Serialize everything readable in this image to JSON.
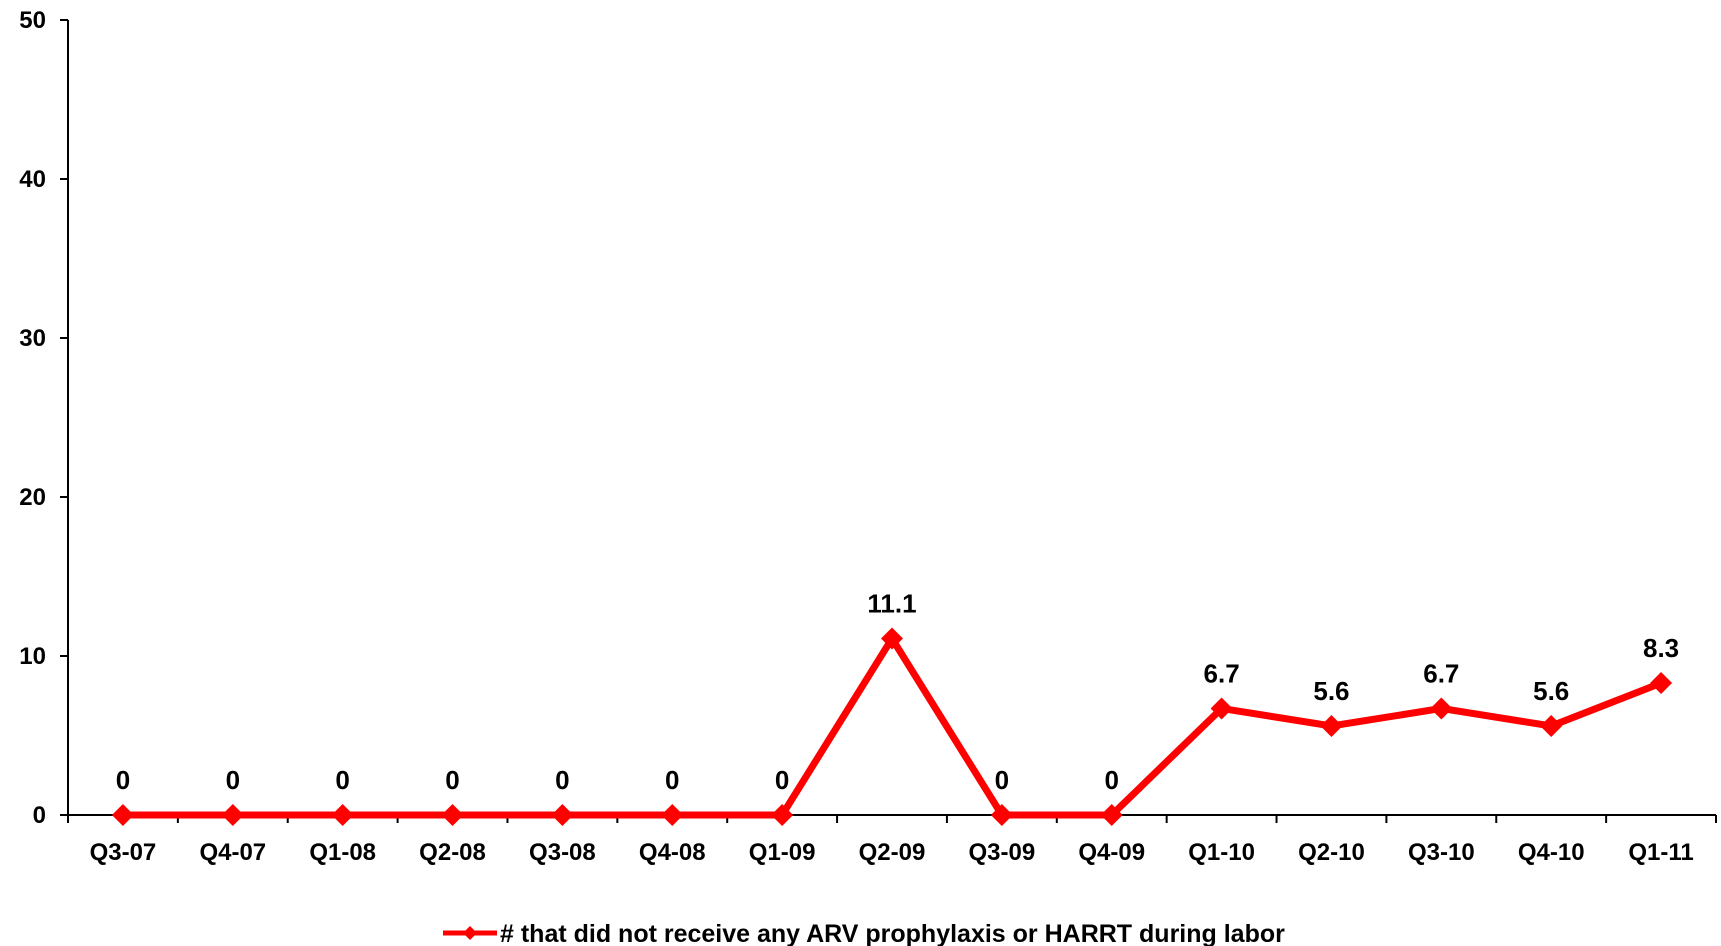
{
  "chart_data": {
    "type": "line",
    "categories": [
      "Q3-07",
      "Q4-07",
      "Q1-08",
      "Q2-08",
      "Q3-08",
      "Q4-08",
      "Q1-09",
      "Q2-09",
      "Q3-09",
      "Q4-09",
      "Q1-10",
      "Q2-10",
      "Q3-10",
      "Q4-10",
      "Q1-11"
    ],
    "series": [
      {
        "name": "# that did not receive any ARV prophylaxis  or HARRT during labor",
        "values": [
          0,
          0,
          0,
          0,
          0,
          0,
          0,
          11.1,
          0,
          0,
          6.7,
          5.6,
          6.7,
          5.6,
          8.3
        ],
        "data_labels": [
          "0",
          "0",
          "0",
          "0",
          "0",
          "0",
          "0",
          "11.1",
          "0",
          "0",
          "6.7",
          "5.6",
          "6.7",
          "5.6",
          "8.3"
        ],
        "color": "#ff0000",
        "marker": "diamond"
      }
    ],
    "ylim": [
      0,
      50
    ],
    "yticks": [
      0,
      10,
      20,
      30,
      40,
      50
    ],
    "ytick_labels": [
      "0",
      "10",
      "20",
      "30",
      "40",
      "50"
    ],
    "grid": false,
    "legend_position": "bottom"
  }
}
